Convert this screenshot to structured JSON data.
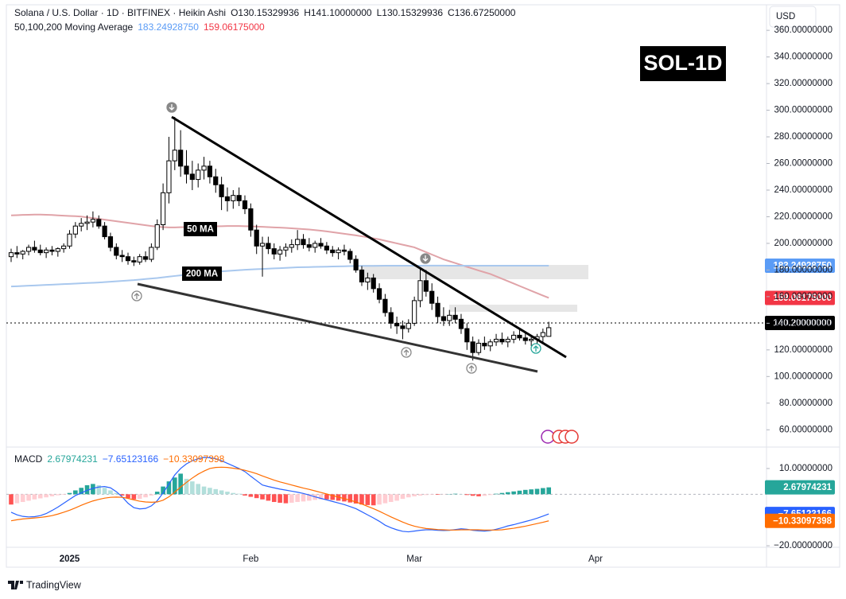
{
  "header": {
    "symbol": "Solana / U.S. Dollar · 1D · BITFINEX · Heikin Ashi",
    "ohlc": [
      "O130.15329936",
      "H141.10000000",
      "L130.15329936",
      "C136.67250000"
    ],
    "ma_title": "50,100,200 Moving Average",
    "ma_values": [
      "183.24928750",
      "159.06175000"
    ],
    "currency": "USD",
    "badge": "SOL-1D",
    "brand": "TradingView"
  },
  "chart_data": [
    {
      "type": "candlestick",
      "categories": [
        null,
        null,
        null,
        null,
        null,
        null,
        null,
        null,
        null,
        null,
        "2025",
        null,
        null,
        null,
        null,
        null,
        null,
        null,
        null,
        null,
        null,
        null,
        null,
        null,
        null,
        null,
        null,
        null,
        null,
        null,
        null,
        null,
        null,
        null,
        null,
        null,
        null,
        null,
        null,
        null,
        null,
        "Feb",
        null,
        null,
        null,
        null,
        null,
        null,
        null,
        null,
        null,
        null,
        null,
        null,
        null,
        null,
        null,
        null,
        null,
        null,
        null,
        null,
        null,
        null,
        null,
        null,
        null,
        null,
        null,
        "Mar",
        null,
        null,
        null,
        null,
        null,
        null,
        null,
        null,
        null,
        null,
        null,
        null,
        null,
        null,
        null,
        null,
        null,
        null,
        null,
        null,
        null,
        null,
        null,
        null,
        null,
        null,
        null,
        null,
        null,
        null,
        "Apr"
      ],
      "open": [
        190,
        193,
        192,
        194,
        197,
        195,
        193,
        195,
        194,
        196,
        198,
        207,
        213,
        215,
        216,
        218,
        213,
        205,
        197,
        191,
        190,
        187,
        186,
        190,
        188,
        197,
        214,
        238,
        262,
        270,
        258,
        252,
        248,
        255,
        258,
        250,
        244,
        235,
        232,
        236,
        232,
        226,
        210,
        198,
        200,
        196,
        192,
        195,
        197,
        199,
        203,
        199,
        197,
        200,
        198,
        195,
        193,
        195,
        194,
        188,
        180,
        171,
        174,
        166,
        158,
        148,
        140,
        138,
        136,
        140,
        157,
        172,
        164,
        155,
        145,
        142,
        146,
        143,
        136,
        126,
        118,
        125,
        123,
        126,
        128,
        126,
        128,
        131,
        129,
        127,
        128,
        130,
        130.15329936,
        null,
        null,
        null,
        null,
        null,
        null,
        null,
        null
      ],
      "high": [
        196,
        198,
        195,
        199,
        202,
        199,
        197,
        198,
        197,
        200,
        210,
        216,
        219,
        221,
        224,
        221,
        216,
        208,
        200,
        195,
        193,
        190,
        192,
        194,
        200,
        218,
        245,
        280,
        295,
        285,
        270,
        262,
        260,
        265,
        262,
        256,
        250,
        242,
        240,
        242,
        236,
        230,
        214,
        205,
        205,
        200,
        198,
        200,
        203,
        210,
        207,
        204,
        202,
        204,
        201,
        198,
        197,
        199,
        196,
        191,
        183,
        178,
        177,
        170,
        162,
        152,
        145,
        142,
        143,
        160,
        182,
        180,
        170,
        160,
        152,
        150,
        152,
        147,
        140,
        130,
        128,
        130,
        128,
        132,
        133,
        130,
        134,
        135,
        133,
        131,
        132,
        136,
        141.1,
        null,
        null,
        null,
        null,
        null,
        null,
        null,
        null
      ],
      "low": [
        186,
        189,
        188,
        191,
        193,
        191,
        189,
        191,
        190,
        193,
        196,
        204,
        209,
        210,
        212,
        211,
        203,
        194,
        188,
        186,
        184,
        183,
        184,
        186,
        186,
        195,
        210,
        230,
        255,
        250,
        245,
        240,
        242,
        248,
        245,
        238,
        225,
        224,
        226,
        228,
        222,
        205,
        192,
        175,
        192,
        188,
        187,
        190,
        193,
        195,
        196,
        194,
        193,
        196,
        192,
        190,
        188,
        191,
        185,
        178,
        168,
        165,
        163,
        155,
        145,
        136,
        132,
        128,
        133,
        138,
        152,
        160,
        150,
        140,
        138,
        138,
        140,
        132,
        120,
        112,
        116,
        120,
        119,
        123,
        124,
        122,
        125,
        127,
        124,
        123,
        124,
        126,
        130.15329936,
        null,
        null,
        null,
        null,
        null,
        null,
        null,
        null
      ],
      "close": [
        193,
        192,
        194,
        197,
        195,
        193,
        195,
        194,
        196,
        198,
        207,
        213,
        215,
        216,
        218,
        213,
        205,
        197,
        191,
        190,
        187,
        186,
        190,
        188,
        197,
        214,
        238,
        262,
        270,
        258,
        252,
        248,
        255,
        258,
        250,
        244,
        235,
        232,
        236,
        232,
        226,
        210,
        198,
        200,
        196,
        192,
        195,
        197,
        199,
        203,
        199,
        197,
        200,
        198,
        195,
        193,
        195,
        194,
        188,
        180,
        171,
        174,
        166,
        158,
        148,
        140,
        138,
        136,
        140,
        157,
        172,
        164,
        155,
        145,
        142,
        146,
        143,
        136,
        126,
        118,
        125,
        123,
        126,
        128,
        126,
        128,
        131,
        129,
        127,
        128,
        130,
        133,
        136.6725,
        null,
        null,
        null,
        null,
        null,
        null,
        null,
        null
      ],
      "up_color": "#ffffff",
      "down_color": "#000000",
      "wick_color": "#000000",
      "series": [
        {
          "name": "50 MA",
          "color": "#e0a3a8",
          "values": [
            221,
            221.2,
            221.4,
            221.5,
            221.6,
            221.6,
            221.5,
            221.3,
            221,
            220.8,
            220.6,
            220.4,
            220.1,
            219.5,
            219,
            218.4,
            217.8,
            217.2,
            216.6,
            216,
            215.4,
            214.8,
            214.2,
            213.6,
            213,
            212.5,
            212.2,
            212,
            212,
            212.1,
            212.2,
            212.4,
            212.5,
            212.6,
            212.7,
            212.8,
            212.9,
            213,
            213,
            213,
            212.9,
            212.8,
            212.6,
            212.4,
            212.2,
            212,
            211.8,
            211.6,
            211.3,
            211,
            210.7,
            210.4,
            210,
            209.5,
            209,
            208.4,
            207.8,
            207.2,
            206.6,
            206,
            205.3,
            204.6,
            203.8,
            203,
            202,
            201,
            200,
            199,
            198,
            197,
            195.2,
            193.4,
            191.6,
            189.8,
            188,
            186.6,
            185.2,
            183.8,
            182.4,
            181,
            179.6,
            178.3,
            177,
            175.2,
            173.4,
            171.6,
            169.8,
            168,
            166.2,
            164.4,
            162.6,
            160.8,
            159.06175,
            null,
            null,
            null,
            null,
            null,
            null,
            null,
            null
          ]
        },
        {
          "name": "200 MA",
          "color": "#a9c8ee",
          "values": [
            167.6,
            167.8,
            168,
            168.2,
            168.4,
            168.6,
            168.8,
            169,
            169.2,
            169.4,
            169.6,
            169.8,
            170,
            170.2,
            170.4,
            170.6,
            170.9,
            171.2,
            171.5,
            171.8,
            172.1,
            172.4,
            172.8,
            173.2,
            173.6,
            174,
            174.5,
            175,
            175.5,
            176,
            176.5,
            177,
            177.4,
            177.8,
            178.2,
            178.6,
            179,
            179.3,
            179.6,
            179.9,
            180.2,
            180.4,
            180.6,
            180.8,
            181,
            181.2,
            181.4,
            181.6,
            181.8,
            182,
            182.1,
            182.2,
            182.3,
            182.4,
            182.5,
            182.6,
            182.7,
            182.8,
            182.9,
            183,
            183.05,
            183.1,
            183.1,
            183.15,
            183.2,
            183.2,
            183.22,
            183.24,
            183.25,
            183.26,
            183.27,
            183.28,
            183.28,
            183.28,
            183.28,
            183.27,
            183.27,
            183.26,
            183.26,
            183.26,
            183.25,
            183.25,
            183.25,
            183.25,
            183.25,
            183.25,
            183.25,
            183.25,
            183.25,
            183.25,
            183.25,
            183.25,
            183.2492875,
            null,
            null,
            null,
            null,
            null,
            null,
            null,
            null
          ]
        }
      ],
      "ylim": [
        50,
        378
      ],
      "yticks": [
        {
          "value": 60,
          "label": "60.00000000"
        },
        {
          "value": 80,
          "label": "80.00000000"
        },
        {
          "value": 100,
          "label": "100.00000000"
        },
        {
          "value": 120,
          "label": "120.00000000"
        },
        {
          "value": 140,
          "label": "140.00000000"
        },
        {
          "value": 160,
          "label": "160.00000000"
        },
        {
          "value": 180,
          "label": "180.00000000"
        },
        {
          "value": 200,
          "label": "200.00000000"
        },
        {
          "value": 220,
          "label": "220.00000000"
        },
        {
          "value": 240,
          "label": "240.00000000"
        },
        {
          "value": 260,
          "label": "260.00000000"
        },
        {
          "value": 280,
          "label": "280.00000000"
        },
        {
          "value": 300,
          "label": "300.00000000"
        },
        {
          "value": 320,
          "label": "320.00000000"
        },
        {
          "value": 340,
          "label": "340.00000000"
        },
        {
          "value": 360,
          "label": "360.00000000"
        }
      ],
      "grid": false,
      "price_tags": [
        {
          "value": 183.2492875,
          "label": "183.24928750",
          "color": "#5b9cf6"
        },
        {
          "value": 159.06175,
          "label": "159.06175000",
          "color": "#f23645"
        },
        {
          "value": 140.2,
          "label": "140.20000000",
          "color": "#000000",
          "dashed_line": true
        }
      ]
    },
    {
      "type": "macd",
      "title": "MACD",
      "series": [
        {
          "color": "#2962ff",
          "legend_label": "−7.65123166",
          "values": [
            -7,
            -8,
            -8.6,
            -8.8,
            -8.7,
            -8.3,
            -7.5,
            -6.3,
            -5,
            -3.5,
            -2,
            -0.5,
            0.5,
            1.5,
            2.3,
            2.8,
            3,
            2.5,
            1,
            -1,
            -3.5,
            -5.2,
            -5.7,
            -5.5,
            -4.5,
            -2.5,
            0.5,
            4,
            7.5,
            10,
            11.8,
            13,
            13.8,
            14.3,
            14.2,
            13.8,
            13,
            12,
            11,
            10,
            8.8,
            7,
            5.3,
            3.6,
            3,
            2.5,
            2,
            1.6,
            1.2,
            0.8,
            0.3,
            -0.3,
            -1,
            -1.6,
            -2.2,
            -2.8,
            -3.4,
            -4,
            -4.8,
            -5.6,
            -6.8,
            -8,
            -9.2,
            -10.5,
            -12,
            -13,
            -13.8,
            -14.4,
            -14.6,
            -14.3,
            -14,
            -13.8,
            -13.8,
            -14,
            -14.1,
            -14,
            -13.7,
            -13.4,
            -13.6,
            -14,
            -14.2,
            -14.3,
            -14.1,
            -13.6,
            -13,
            -12.3,
            -11.8,
            -11.2,
            -10.6,
            -10,
            -9.3,
            -8.5,
            -7.65123166,
            null,
            null,
            null,
            null,
            null,
            null,
            null,
            null
          ]
        },
        {
          "color": "#ff6d00",
          "legend_label": "−10.33097398",
          "values": [
            -10.3,
            -9.9,
            -9.6,
            -9.4,
            -9.2,
            -9,
            -8.7,
            -8.3,
            -7.7,
            -7,
            -6.2,
            -5.3,
            -4.3,
            -3.4,
            -2.6,
            -2,
            -1.5,
            -1.2,
            -1.1,
            -1.2,
            -1.6,
            -2.2,
            -2.7,
            -3,
            -3.1,
            -3,
            -2.3,
            -1,
            0.8,
            2.8,
            4.6,
            6.3,
            7.8,
            9,
            10,
            10.4,
            10.5,
            10.4,
            10.1,
            9.8,
            9.3,
            8.7,
            8,
            7.1,
            6.3,
            5.5,
            4.8,
            4.2,
            3.6,
            3,
            2.4,
            1.9,
            1.3,
            0.7,
            0.1,
            -0.5,
            -1.1,
            -1.7,
            -2.3,
            -3,
            -3.8,
            -4.7,
            -5.6,
            -6.6,
            -7.7,
            -8.8,
            -9.8,
            -10.8,
            -11.7,
            -12.4,
            -12.9,
            -13.3,
            -13.5,
            -13.7,
            -13.8,
            -13.9,
            -13.9,
            -13.8,
            -13.8,
            -13.8,
            -13.8,
            -13.9,
            -13.9,
            -13.9,
            -13.8,
            -13.5,
            -13.2,
            -12.8,
            -12.4,
            -11.9,
            -11.4,
            -10.9,
            -10.33097398,
            null,
            null,
            null,
            null,
            null,
            null,
            null,
            null
          ]
        }
      ],
      "histogram": {
        "legend_label": "2.67974231",
        "color": "#26a69a",
        "colors": {
          "up_rising": "#26a69a",
          "up_falling": "#b2dfdb",
          "down_falling": "#ff5252",
          "down_rising": "#ffcdd2"
        },
        "values": [
          -4,
          -3.5,
          -3,
          -2.5,
          -2,
          -1.6,
          -1.2,
          -0.8,
          -0.4,
          -0.2,
          0.5,
          1.5,
          2.5,
          3.5,
          4,
          3.5,
          2.5,
          1.5,
          0.5,
          -0.5,
          -1.5,
          -2,
          -1.8,
          -1.2,
          -0.5,
          1,
          3,
          5,
          6.5,
          8,
          6,
          5,
          4,
          3,
          2.5,
          2,
          1.5,
          1,
          0.5,
          0.2,
          -0.5,
          -1,
          -1.5,
          -2,
          -2.5,
          -3,
          -3.3,
          -3.5,
          -3.3,
          -3,
          -2.8,
          -2.5,
          -2.2,
          -2,
          -2,
          -2.2,
          -2.5,
          -2.8,
          -3.2,
          -3.6,
          -4,
          -4.2,
          -4.3,
          -4,
          -3.5,
          -3,
          -2.5,
          -1.8,
          -1.2,
          -0.8,
          -0.5,
          -0.3,
          -0.2,
          -0.2,
          -0.1,
          0.1,
          0.2,
          0.1,
          -0.3,
          -0.6,
          -0.8,
          -0.6,
          -0.3,
          0.2,
          0.5,
          0.8,
          1.1,
          1.4,
          1.7,
          1.9,
          2.1,
          2.4,
          2.67974231,
          null,
          null,
          null,
          null,
          null,
          null,
          null,
          null
        ]
      },
      "ylim": [
        -20.6,
        17.4
      ],
      "yticks": [
        {
          "value": 10,
          "label": "10.00000000"
        },
        {
          "value": -20,
          "label": "−20.00000000"
        }
      ],
      "zero_line": true,
      "price_tags": [
        {
          "value": 2.67974231,
          "label": "2.67974231",
          "color": "#26a69a"
        },
        {
          "value": -7.65123166,
          "label": "−7.65123166",
          "color": "#2962ff"
        },
        {
          "value": -10.33097398,
          "label": "−10.33097398",
          "color": "#ff6d00"
        }
      ]
    }
  ]
}
